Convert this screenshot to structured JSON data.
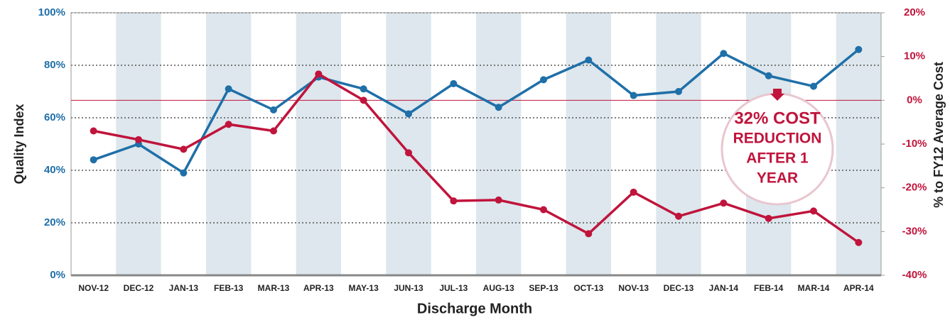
{
  "chart_data": {
    "type": "line",
    "x_label": "Discharge Month",
    "y_label": "Quality Index",
    "y2_label": "% to FY12 Average Cost",
    "categories": [
      "NOV-12",
      "DEC-12",
      "JAN-13",
      "FEB-13",
      "MAR-13",
      "APR-13",
      "MAY-13",
      "JUN-13",
      "JUL-13",
      "AUG-13",
      "SEP-13",
      "OCT-13",
      "NOV-13",
      "DEC-13",
      "JAN-14",
      "FEB-14",
      "MAR-14",
      "APR-14"
    ],
    "series": [
      {
        "name": "Quality Index",
        "color": "#1f6fa8",
        "values": [
          44,
          50,
          39,
          71,
          63,
          75.5,
          71,
          61.5,
          73,
          64,
          74.5,
          82,
          68.5,
          70,
          84.5,
          76,
          72,
          86
        ]
      },
      {
        "name": "% to FY12 Average Cost",
        "color": "#c0143c",
        "axis": "y2",
        "values": [
          -7,
          -9,
          -11.2,
          -5.5,
          -7,
          6,
          0,
          -12,
          -23,
          -22.8,
          -25,
          -30.5,
          -21,
          -26.5,
          -23.5,
          -27,
          -25.3,
          -32.5
        ]
      }
    ],
    "ylim": [
      0,
      100
    ],
    "yticks": [
      {
        "value": 0,
        "label": "0%"
      },
      {
        "value": 20,
        "label": "20%"
      },
      {
        "value": 40,
        "label": "40%"
      },
      {
        "value": 60,
        "label": "60%"
      },
      {
        "value": 80,
        "label": "80%"
      },
      {
        "value": 100,
        "label": "100%"
      }
    ],
    "y2lim": [
      -40,
      20
    ],
    "y2ticks": [
      {
        "value": -40,
        "label": "-40%"
      },
      {
        "value": -30,
        "label": "-30%"
      },
      {
        "value": -20,
        "label": "-20%"
      },
      {
        "value": -10,
        "label": "-10%"
      },
      {
        "value": 0,
        "label": "0%"
      },
      {
        "value": 10,
        "label": "10%"
      },
      {
        "value": 20,
        "label": "20%"
      }
    ],
    "y2_reference_line": 0,
    "grid": true,
    "band_color": "#dde7ed",
    "annotation": [
      "32% COST",
      "REDUCTION",
      "AFTER 1",
      "YEAR"
    ]
  }
}
